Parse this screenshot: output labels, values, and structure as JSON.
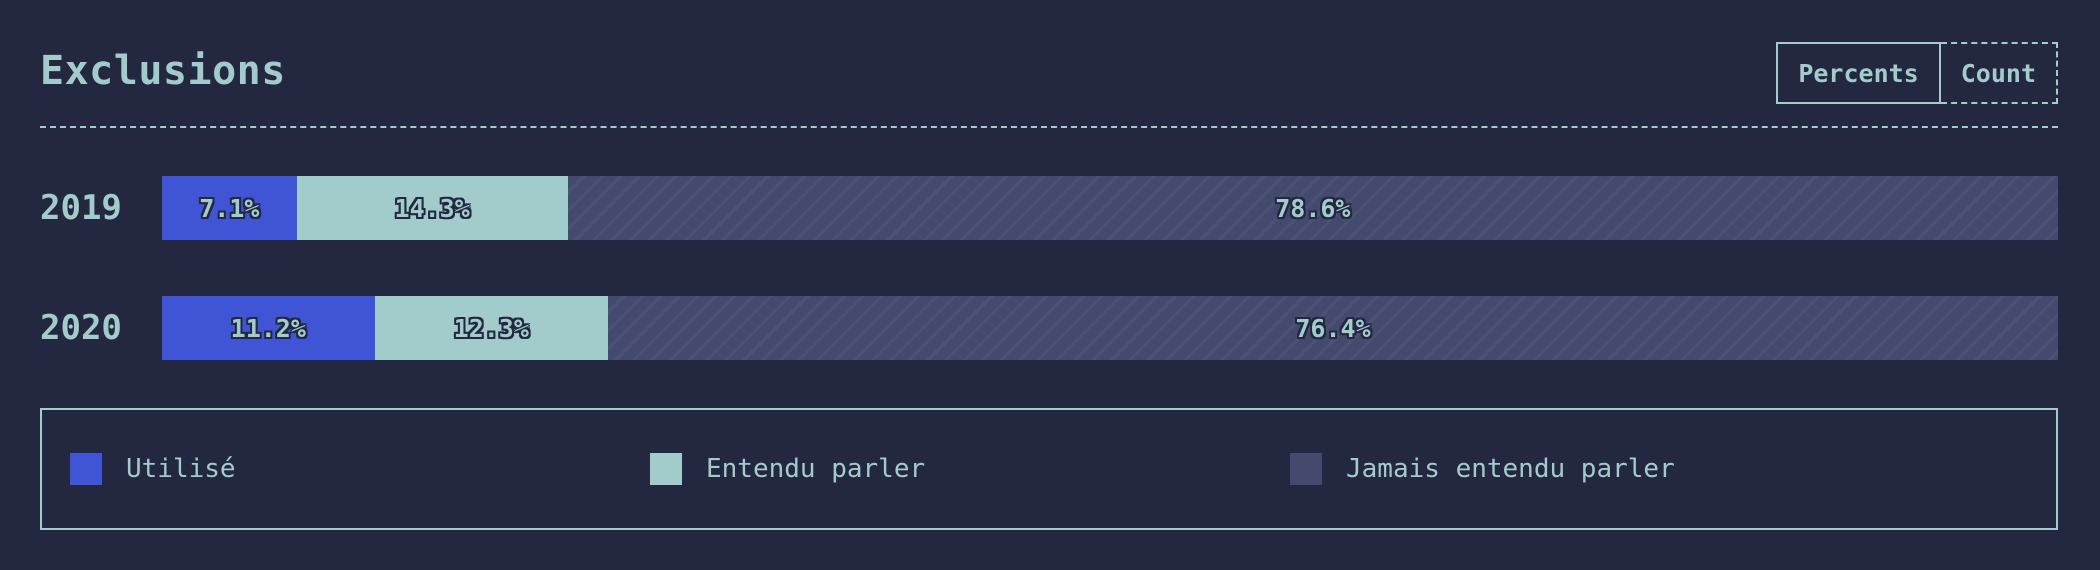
{
  "header": {
    "title": "Exclusions",
    "toggle": {
      "percents_label": "Percents",
      "count_label": "Count",
      "active": "Percents"
    }
  },
  "chart_data": {
    "type": "bar",
    "orientation": "horizontal",
    "stacked": true,
    "title": "Exclusions",
    "categories": [
      "2019",
      "2020"
    ],
    "unit": "percent",
    "series": [
      {
        "name": "Utilisé",
        "color": "#3f55d6",
        "values": [
          7.1,
          11.2
        ],
        "labels": [
          "7.1%",
          "11.2%"
        ]
      },
      {
        "name": "Entendu parler",
        "color": "#a2cbcb",
        "values": [
          14.3,
          12.3
        ],
        "labels": [
          "14.3%",
          "12.3%"
        ]
      },
      {
        "name": "Jamais entendu parler",
        "color": "#434a6d",
        "pattern": "diagonal-stripes",
        "values": [
          78.6,
          76.4
        ],
        "labels": [
          "78.6%",
          "76.4%"
        ]
      }
    ],
    "legend_placement": "bottom"
  }
}
